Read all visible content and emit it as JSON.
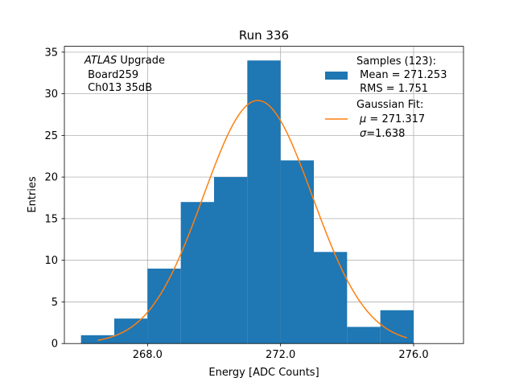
{
  "chart_data": {
    "type": "bar",
    "title": "Run 336",
    "xlabel": "Energy [ADC Counts]",
    "ylabel": "Entries",
    "xlim": [
      265.5,
      277.5
    ],
    "ylim": [
      0,
      35.7
    ],
    "grid": true,
    "x_ticks": [
      268.0,
      272.0,
      276.0
    ],
    "x_tick_labels": [
      "268.0",
      "272.0",
      "276.0"
    ],
    "y_ticks": [
      0,
      5,
      10,
      15,
      20,
      25,
      30,
      35
    ],
    "y_tick_labels": [
      "0",
      "5",
      "10",
      "15",
      "20",
      "25",
      "30",
      "35"
    ],
    "bin_edges": [
      266,
      267,
      268,
      269,
      270,
      271,
      272,
      273,
      274,
      275,
      276
    ],
    "counts": [
      1,
      3,
      9,
      17,
      20,
      34,
      22,
      11,
      2,
      4
    ],
    "bar_color": "#1f77b4",
    "fit": {
      "mu": 271.317,
      "sigma": 1.638,
      "amplitude": 29.2,
      "x_range": [
        266.5,
        275.8
      ],
      "color": "#ff7f0e"
    },
    "annotation": {
      "italic": "ATLAS",
      "line1_rest": " Upgrade",
      "line2": " Board259",
      "line3": " Ch013 35dB"
    },
    "legend": {
      "position": "top-right",
      "samples_line1": "Samples (123):",
      "samples_line2": " Mean = 271.253",
      "samples_line3": " RMS = 1.751",
      "fit_line1": "Gaussian Fit:",
      "fit_mu_symbol": "μ",
      "fit_mu_rest": " = 271.317",
      "fit_sigma_symbol": "σ",
      "fit_sigma_rest": "=1.638"
    }
  }
}
